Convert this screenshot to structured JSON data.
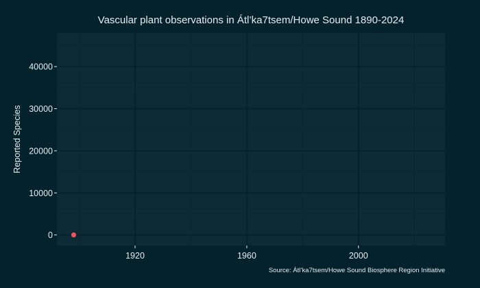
{
  "chart_data": {
    "type": "scatter",
    "title": "Vascular plant observations in Átl’ka7tsem/Howe Sound 1890-2024",
    "xlabel": "",
    "ylabel": "Reported Species",
    "xlim": [
      1892,
      2031
    ],
    "ylim": [
      -2500,
      48000
    ],
    "x_ticks": [
      1920,
      1960,
      2000
    ],
    "x_minor_ticks": [
      1900,
      1940,
      1980,
      2020
    ],
    "y_ticks": [
      0,
      10000,
      20000,
      30000,
      40000
    ],
    "y_minor_ticks": [
      5000,
      15000,
      25000,
      35000,
      45000
    ],
    "points": [
      {
        "x": 1898,
        "y": 0
      }
    ],
    "grid": true,
    "legend": "none",
    "source": "Source: Átl’ka7tsem/Howe Sound Biosphere Region Initiative"
  },
  "colors": {
    "background": "#04222c",
    "panel": "#0e2a34",
    "grid_major": "#04222c",
    "grid_minor": "#082630",
    "point": "#f0545c",
    "text": "#e6edf0"
  }
}
